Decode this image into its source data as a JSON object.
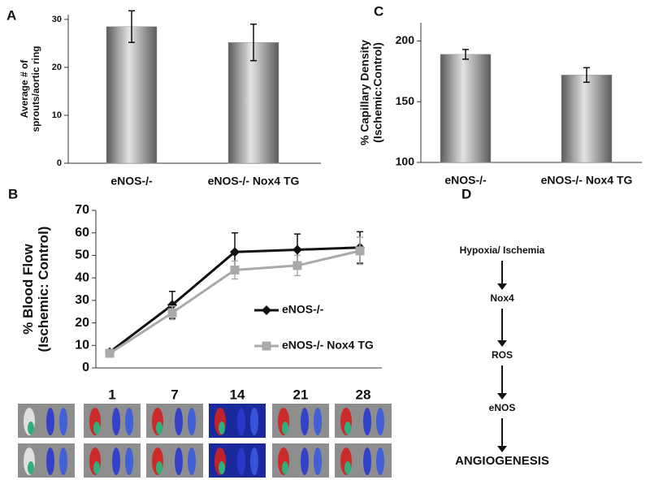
{
  "panel_labels": [
    "A",
    "B",
    "C",
    "D"
  ],
  "chart_data": [
    {
      "type": "bar",
      "ylabel": [
        "Average # of",
        "sprouts/aortic ring"
      ],
      "categories": [
        "eNOS-/-",
        "eNOS-/- Nox4 TG"
      ],
      "values": [
        28.5,
        25.2
      ],
      "errors": [
        3.3,
        3.8
      ],
      "color": "#9a9a9a",
      "ylim": [
        0,
        31
      ],
      "yticks": [
        0,
        10,
        20,
        30
      ]
    },
    {
      "type": "bar",
      "ylabel": [
        "% Capillary Density",
        "(Ischemic:Control)"
      ],
      "categories": [
        "eNOS-/-",
        "eNOS-/- Nox4 TG"
      ],
      "values": [
        189,
        172
      ],
      "errors": [
        4,
        6
      ],
      "color": "#9a9a9a",
      "ylim": [
        100,
        215
      ],
      "yticks": [
        100,
        150,
        200
      ]
    },
    {
      "type": "line",
      "ylabel": [
        "% Blood Flow",
        "(Ischemic: Control)"
      ],
      "categories": [
        null,
        null,
        null,
        null,
        null
      ],
      "series": [
        {
          "name": "eNOS-/-",
          "color": "#111111",
          "marker": "diamond",
          "values": [
            7,
            28,
            51.5,
            52.5,
            53.5
          ],
          "errors": [
            1,
            6,
            8.5,
            7,
            7
          ]
        },
        {
          "name": "eNOS-/- Nox4 TG",
          "color": "#aaaaaa",
          "marker": "square",
          "values": [
            6.5,
            24.5,
            43.5,
            45.5,
            52
          ],
          "errors": [
            1,
            3,
            4,
            4.5,
            6
          ]
        }
      ],
      "ylim": [
        0,
        70
      ],
      "yticks": [
        0,
        10,
        20,
        30,
        40,
        50,
        60,
        70
      ]
    }
  ],
  "image_days": [
    null,
    "1",
    "7",
    "14",
    "21",
    "28"
  ],
  "diagram": {
    "nodes": [
      "Hypoxia/ Ischemia",
      "Nox4",
      "ROS",
      "eNOS",
      "ANGIOGENESIS"
    ]
  }
}
